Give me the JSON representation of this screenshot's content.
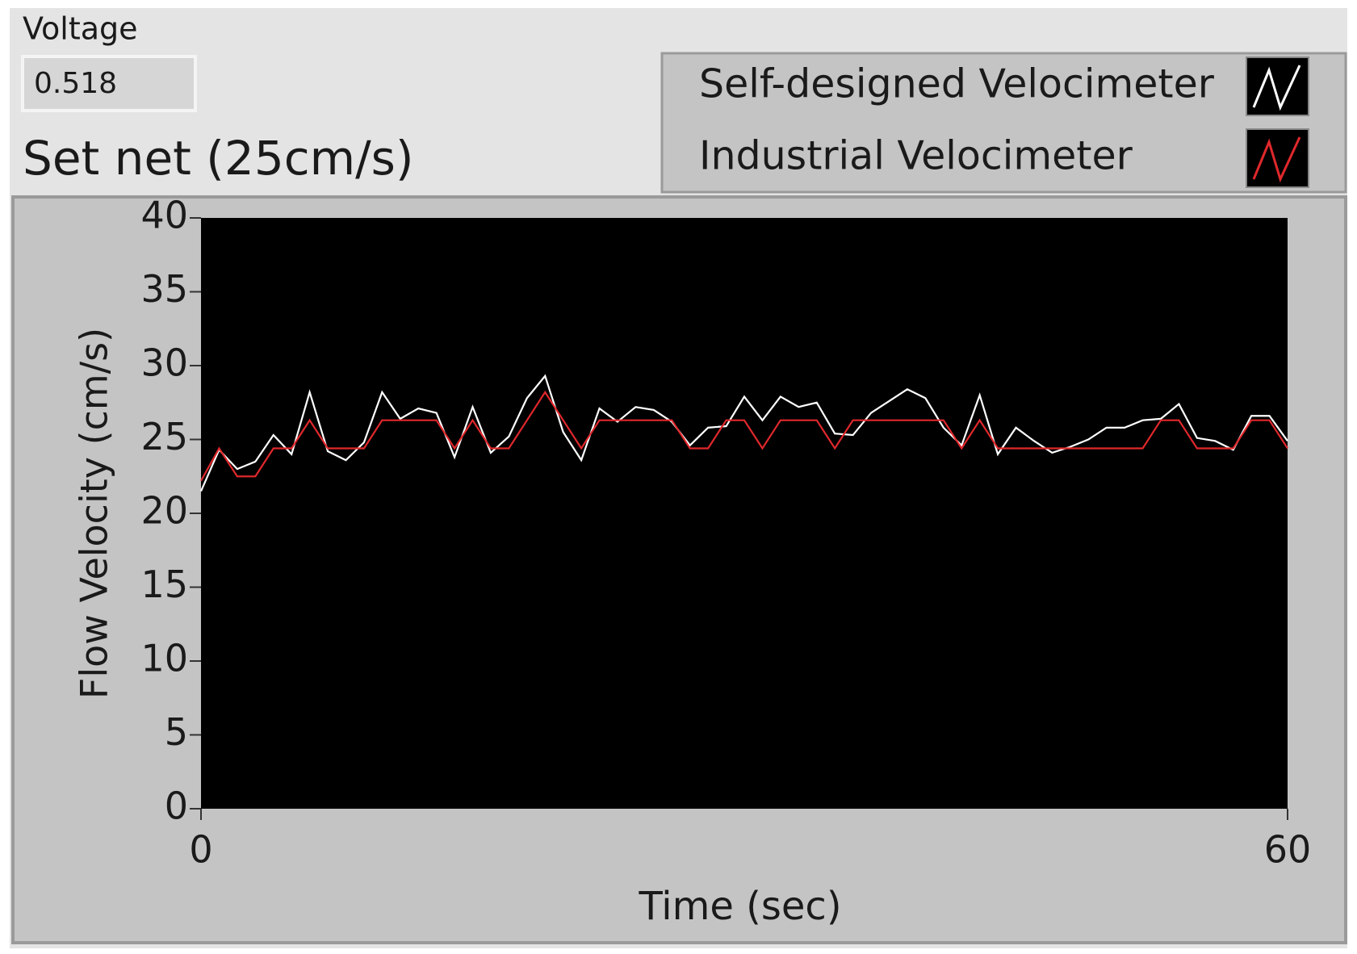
{
  "voltage": {
    "label": "Voltage",
    "value": "0.518"
  },
  "chart_data": {
    "type": "line",
    "title": "Set net (25cm/s)",
    "x_label": "Time (sec)",
    "y_label": "Flow Velocity (cm/s)",
    "x": [
      0,
      1,
      2,
      3,
      4,
      5,
      6,
      7,
      8,
      9,
      10,
      11,
      12,
      13,
      14,
      15,
      16,
      17,
      18,
      19,
      20,
      21,
      22,
      23,
      24,
      25,
      26,
      27,
      28,
      29,
      30,
      31,
      32,
      33,
      34,
      35,
      36,
      37,
      38,
      39,
      40,
      41,
      42,
      43,
      44,
      45,
      46,
      47,
      48,
      49,
      50,
      51,
      52,
      53,
      54,
      55,
      56,
      57,
      58,
      59,
      60
    ],
    "series": [
      {
        "name": "Self-designed Velocimeter",
        "color": "#ffffff",
        "values": [
          21.5,
          24.3,
          23,
          23.5,
          25.3,
          24,
          28.2,
          24.2,
          23.6,
          24.8,
          28.2,
          26.4,
          27.1,
          26.8,
          23.8,
          27.2,
          24.1,
          25.2,
          27.8,
          29.3,
          25.5,
          23.6,
          27.1,
          26.2,
          27.2,
          27,
          26.2,
          24.6,
          25.8,
          25.9,
          27.9,
          26.3,
          27.9,
          27.2,
          27.5,
          25.4,
          25.3,
          26.8,
          27.6,
          28.4,
          27.8,
          25.8,
          24.6,
          28,
          24,
          25.8,
          24.9,
          24.1,
          24.5,
          25,
          25.8,
          25.8,
          26.3,
          26.4,
          27.4,
          25.1,
          24.9,
          24.3,
          26.6,
          26.6,
          24.9
        ]
      },
      {
        "name": "Industrial Velocimeter",
        "color": "#e0282c",
        "values": [
          22.2,
          24.4,
          22.5,
          22.5,
          24.4,
          24.4,
          26.3,
          24.4,
          24.4,
          24.4,
          26.3,
          26.3,
          26.3,
          26.3,
          24.4,
          26.3,
          24.4,
          24.4,
          26.3,
          28.2,
          26.3,
          24.4,
          26.3,
          26.3,
          26.3,
          26.3,
          26.3,
          24.4,
          24.4,
          26.3,
          26.3,
          24.4,
          26.3,
          26.3,
          26.3,
          24.4,
          26.3,
          26.3,
          26.3,
          26.3,
          26.3,
          26.3,
          24.4,
          26.3,
          24.4,
          24.4,
          24.4,
          24.4,
          24.4,
          24.4,
          24.4,
          24.4,
          24.4,
          26.3,
          26.3,
          24.4,
          24.4,
          24.4,
          26.3,
          26.3,
          24.4
        ]
      }
    ],
    "xlim": [
      0,
      60
    ],
    "xticks": [
      0,
      60
    ],
    "ylim": [
      0,
      40
    ],
    "yticks": [
      0,
      5,
      10,
      15,
      20,
      25,
      30,
      35,
      40
    ],
    "plot_background": "#000000"
  }
}
